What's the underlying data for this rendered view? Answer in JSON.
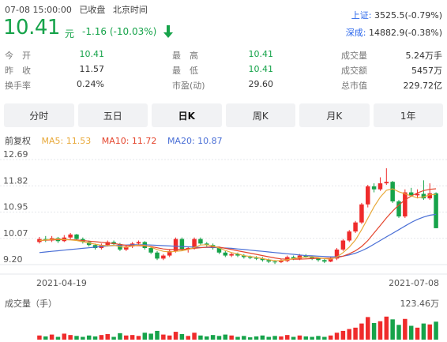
{
  "header": {
    "time": "07-08 15:00:00",
    "status": "已收盘",
    "tz": "北京时间",
    "price": "10.41",
    "unit": "元",
    "change": "-1.16 (-10.03%)"
  },
  "indices": [
    {
      "label": "上证:",
      "value": "3525.5(-0.79%)"
    },
    {
      "label": "深成:",
      "value": "14882.9(-0.38%)"
    }
  ],
  "stats": [
    {
      "label": "今　开",
      "value": "10.41",
      "color": "#16a34a"
    },
    {
      "label": "最　高",
      "value": "10.41",
      "color": "#16a34a"
    },
    {
      "label": "成交量",
      "value": "5.24万手",
      "color": "#333333"
    },
    {
      "label": "昨　收",
      "value": "11.57",
      "color": "#333333"
    },
    {
      "label": "最　低",
      "value": "10.41",
      "color": "#16a34a"
    },
    {
      "label": "成交额",
      "value": "5457万",
      "color": "#333333"
    },
    {
      "label": "换手率",
      "value": "0.24%",
      "color": "#333333"
    },
    {
      "label": "市盈(动)",
      "value": "29.60",
      "color": "#333333"
    },
    {
      "label": "总市值",
      "value": "229.72亿",
      "color": "#333333"
    }
  ],
  "tabs": [
    "分时",
    "五日",
    "日K",
    "周K",
    "月K",
    "1年"
  ],
  "active_tab": "日K",
  "legend": {
    "adj": "前复权",
    "ma5": "MA5: 11.53",
    "ma10": "MA10: 11.72",
    "ma20": "MA20: 10.87"
  },
  "colors": {
    "up": "#ef2b2b",
    "down": "#16a34a",
    "ma5": "#e8a93a",
    "ma10": "#e4452d",
    "ma20": "#4a6fd6",
    "index_label": "#2563eb"
  },
  "chart_data": {
    "type": "candlestick",
    "y_ticks": [
      "12.69",
      "11.82",
      "10.95",
      "10.07",
      "9.20"
    ],
    "ylim": [
      9.2,
      12.69
    ],
    "x_start_label": "2021-04-19",
    "x_end_label": "2021-07-08",
    "volume_label": "成交量（手）",
    "volume_max_label": "123.46万",
    "volume_max": 123.46,
    "candles": [
      [
        9.95,
        10.05,
        10.12,
        9.9
      ],
      [
        10.05,
        10.0,
        10.15,
        9.95
      ],
      [
        10.0,
        10.08,
        10.15,
        9.95
      ],
      [
        10.08,
        9.98,
        10.12,
        9.92
      ],
      [
        9.98,
        10.1,
        10.18,
        9.95
      ],
      [
        10.1,
        10.2,
        10.25,
        10.05
      ],
      [
        10.2,
        10.05,
        10.22,
        10.0
      ],
      [
        10.05,
        9.95,
        10.1,
        9.9
      ],
      [
        9.95,
        9.85,
        10.0,
        9.8
      ],
      [
        9.85,
        9.75,
        9.9,
        9.7
      ],
      [
        9.75,
        9.85,
        9.9,
        9.7
      ],
      [
        9.85,
        9.95,
        10.0,
        9.8
      ],
      [
        9.95,
        9.88,
        10.0,
        9.85
      ],
      [
        9.88,
        9.7,
        9.92,
        9.65
      ],
      [
        9.7,
        9.8,
        9.85,
        9.65
      ],
      [
        9.8,
        9.9,
        9.95,
        9.75
      ],
      [
        9.9,
        9.95,
        10.0,
        9.85
      ],
      [
        9.95,
        9.75,
        9.98,
        9.7
      ],
      [
        9.75,
        9.6,
        9.8,
        9.55
      ],
      [
        9.6,
        9.4,
        9.65,
        9.35
      ],
      [
        9.4,
        9.5,
        9.55,
        9.35
      ],
      [
        9.5,
        9.65,
        9.7,
        9.45
      ],
      [
        9.65,
        10.05,
        10.1,
        9.6
      ],
      [
        10.05,
        9.7,
        10.1,
        9.65
      ],
      [
        9.7,
        9.75,
        9.8,
        9.6
      ],
      [
        9.75,
        10.05,
        10.1,
        9.7
      ],
      [
        10.05,
        9.9,
        10.1,
        9.85
      ],
      [
        9.9,
        9.85,
        9.95,
        9.8
      ],
      [
        9.85,
        9.75,
        9.9,
        9.7
      ],
      [
        9.75,
        9.6,
        9.8,
        9.55
      ],
      [
        9.6,
        9.5,
        9.65,
        9.45
      ],
      [
        9.5,
        9.55,
        9.6,
        9.45
      ],
      [
        9.55,
        9.5,
        9.6,
        9.45
      ],
      [
        9.5,
        9.45,
        9.55,
        9.4
      ],
      [
        9.45,
        9.42,
        9.5,
        9.38
      ],
      [
        9.42,
        9.4,
        9.48,
        9.35
      ],
      [
        9.4,
        9.35,
        9.45,
        9.3
      ],
      [
        9.35,
        9.3,
        9.4,
        9.25
      ],
      [
        9.3,
        9.28,
        9.35,
        9.22
      ],
      [
        9.28,
        9.32,
        9.38,
        9.25
      ],
      [
        9.32,
        9.45,
        9.5,
        9.28
      ],
      [
        9.45,
        9.4,
        9.5,
        9.35
      ],
      [
        9.4,
        9.5,
        9.55,
        9.35
      ],
      [
        9.5,
        9.45,
        9.55,
        9.42
      ],
      [
        9.45,
        9.4,
        9.5,
        9.35
      ],
      [
        9.4,
        9.35,
        9.45,
        9.3
      ],
      [
        9.35,
        9.3,
        9.4,
        9.25
      ],
      [
        9.3,
        9.4,
        9.45,
        9.28
      ],
      [
        9.4,
        9.7,
        9.75,
        9.35
      ],
      [
        9.7,
        10.0,
        10.05,
        9.65
      ],
      [
        10.0,
        10.3,
        10.35,
        9.95
      ],
      [
        10.3,
        10.6,
        10.65,
        10.25
      ],
      [
        10.6,
        11.2,
        11.25,
        10.55
      ],
      [
        11.2,
        11.8,
        11.85,
        11.1
      ],
      [
        11.8,
        11.7,
        11.9,
        11.6
      ],
      [
        11.7,
        11.9,
        12.1,
        11.65
      ],
      [
        11.9,
        11.95,
        12.4,
        11.85
      ],
      [
        11.95,
        11.3,
        11.98,
        11.25
      ],
      [
        11.3,
        10.8,
        11.35,
        10.75
      ],
      [
        10.8,
        11.6,
        11.7,
        10.75
      ],
      [
        11.6,
        11.5,
        11.75,
        11.45
      ],
      [
        11.5,
        11.55,
        11.7,
        11.4
      ],
      [
        11.55,
        11.4,
        12.0,
        11.35
      ],
      [
        11.4,
        11.57,
        11.9,
        11.35
      ],
      [
        11.57,
        10.41,
        11.6,
        10.41
      ]
    ],
    "ma5": [
      10.0,
      10.02,
      10.04,
      10.05,
      10.03,
      10.02,
      10.0,
      9.96,
      9.92,
      9.88,
      9.84,
      9.83,
      9.84,
      9.8,
      9.77,
      9.82,
      9.85,
      9.84,
      9.78,
      9.7,
      9.64,
      9.62,
      9.64,
      9.66,
      9.7,
      9.77,
      9.85,
      9.86,
      9.82,
      9.75,
      9.67,
      9.6,
      9.56,
      9.5,
      9.47,
      9.44,
      9.4,
      9.36,
      9.33,
      9.33,
      9.36,
      9.4,
      9.43,
      9.45,
      9.46,
      9.43,
      9.4,
      9.38,
      9.45,
      9.6,
      9.78,
      10.02,
      10.36,
      10.74,
      11.12,
      11.44,
      11.67,
      11.72,
      11.62,
      11.55,
      11.48,
      11.42,
      11.45,
      11.52,
      11.53
    ],
    "ma10": [
      10.0,
      10.01,
      10.02,
      10.03,
      10.03,
      10.03,
      10.02,
      10.0,
      9.98,
      9.96,
      9.94,
      9.92,
      9.9,
      9.87,
      9.84,
      9.83,
      9.83,
      9.82,
      9.8,
      9.76,
      9.72,
      9.7,
      9.7,
      9.7,
      9.72,
      9.74,
      9.76,
      9.78,
      9.79,
      9.78,
      9.74,
      9.7,
      9.66,
      9.62,
      9.58,
      9.54,
      9.5,
      9.46,
      9.42,
      9.39,
      9.38,
      9.38,
      9.38,
      9.39,
      9.4,
      9.41,
      9.41,
      9.41,
      9.43,
      9.48,
      9.56,
      9.66,
      9.8,
      10.0,
      10.25,
      10.5,
      10.75,
      10.98,
      11.18,
      11.35,
      11.48,
      11.58,
      11.66,
      11.7,
      11.72
    ],
    "ma20": [
      9.6,
      9.62,
      9.64,
      9.66,
      9.68,
      9.7,
      9.72,
      9.74,
      9.76,
      9.78,
      9.8,
      9.82,
      9.83,
      9.84,
      9.85,
      9.86,
      9.86,
      9.86,
      9.85,
      9.84,
      9.83,
      9.82,
      9.81,
      9.8,
      9.79,
      9.78,
      9.77,
      9.77,
      9.77,
      9.76,
      9.75,
      9.74,
      9.72,
      9.7,
      9.68,
      9.66,
      9.64,
      9.62,
      9.6,
      9.58,
      9.56,
      9.54,
      9.52,
      9.5,
      9.49,
      9.48,
      9.47,
      9.46,
      9.46,
      9.48,
      9.52,
      9.58,
      9.66,
      9.76,
      9.88,
      10.0,
      10.12,
      10.24,
      10.36,
      10.48,
      10.6,
      10.7,
      10.78,
      10.84,
      10.87
    ],
    "volumes": [
      18,
      14,
      22,
      12,
      26,
      20,
      16,
      12,
      18,
      14,
      20,
      24,
      12,
      28,
      18,
      20,
      16,
      30,
      26,
      38,
      22,
      18,
      34,
      24,
      16,
      30,
      18,
      14,
      20,
      16,
      22,
      18,
      12,
      16,
      10,
      14,
      18,
      12,
      16,
      14,
      20,
      12,
      18,
      14,
      12,
      16,
      12,
      18,
      30,
      38,
      46,
      52,
      70,
      98,
      72,
      80,
      100,
      88,
      64,
      90,
      60,
      52,
      70,
      66,
      78
    ]
  }
}
